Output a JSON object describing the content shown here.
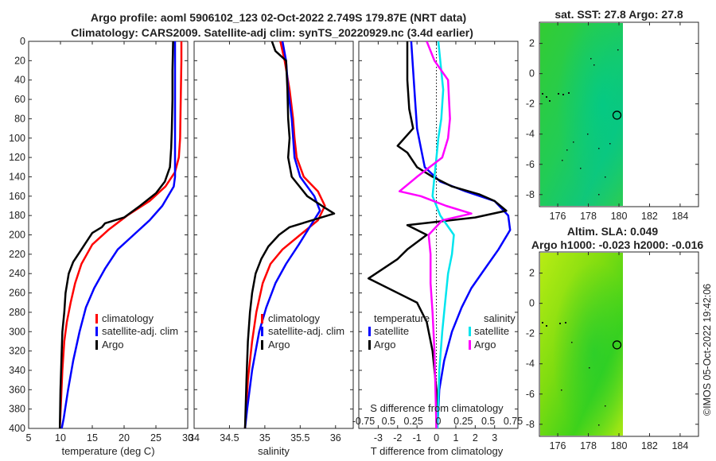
{
  "header": {
    "line1": "Argo profile: aoml 5906102_123 02-Oct-2022 2.749S 179.87E (NRT data)",
    "line2": "Climatology: CARS2009. Satellite-adj clim: synTS_20220929.nc (3.4d earlier)"
  },
  "watermark": "©IMOS 05-Oct-2022 19:42:06",
  "colors": {
    "climatology": "#ff0000",
    "satellite": "#0000ff",
    "argo": "#000000",
    "cyan": "#00e5ee",
    "magenta": "#ff00ff",
    "sst_base": "#22cc44",
    "sla_base": "#88e010"
  },
  "chart_data": [
    {
      "id": "temperature",
      "type": "line",
      "xlabel": "temperature (deg C)",
      "xlim": [
        5,
        30
      ],
      "xticks": [
        "5",
        "10",
        "15",
        "20",
        "25",
        "30"
      ],
      "ylim": [
        0,
        400
      ],
      "yticks": [
        "0",
        "20",
        "40",
        "60",
        "80",
        "100",
        "120",
        "140",
        "160",
        "180",
        "200",
        "220",
        "240",
        "260",
        "280",
        "300",
        "320",
        "340",
        "360",
        "380",
        "400"
      ],
      "legend": [
        "climatology",
        "satellite-adj. clim",
        "Argo"
      ],
      "series": [
        {
          "name": "climatology",
          "color": "#ff0000",
          "width": 2.5,
          "points": [
            [
              29.0,
              0
            ],
            [
              29.0,
              20
            ],
            [
              28.9,
              60
            ],
            [
              28.8,
              100
            ],
            [
              28.6,
              120
            ],
            [
              28.0,
              135
            ],
            [
              26.5,
              150
            ],
            [
              24.0,
              165
            ],
            [
              20.5,
              180
            ],
            [
              17.5,
              195
            ],
            [
              15.0,
              210
            ],
            [
              13.3,
              230
            ],
            [
              12.3,
              250
            ],
            [
              11.6,
              270
            ],
            [
              11.0,
              290
            ],
            [
              10.6,
              310
            ],
            [
              10.3,
              340
            ],
            [
              10.1,
              370
            ],
            [
              9.9,
              400
            ]
          ]
        },
        {
          "name": "satellite-adj. clim",
          "color": "#0000ff",
          "width": 2.5,
          "points": [
            [
              28.0,
              0
            ],
            [
              28.0,
              40
            ],
            [
              28.0,
              100
            ],
            [
              28.0,
              140
            ],
            [
              27.8,
              150
            ],
            [
              26.0,
              170
            ],
            [
              24.0,
              185
            ],
            [
              21.5,
              200
            ],
            [
              19.0,
              215
            ],
            [
              17.0,
              235
            ],
            [
              15.3,
              255
            ],
            [
              14.0,
              275
            ],
            [
              13.0,
              300
            ],
            [
              12.0,
              330
            ],
            [
              11.2,
              360
            ],
            [
              10.5,
              390
            ],
            [
              10.2,
              400
            ]
          ]
        },
        {
          "name": "Argo",
          "color": "#000000",
          "width": 2.5,
          "points": [
            [
              27.7,
              0
            ],
            [
              27.6,
              30
            ],
            [
              27.6,
              60
            ],
            [
              27.5,
              90
            ],
            [
              27.4,
              110
            ],
            [
              27.2,
              130
            ],
            [
              26.4,
              145
            ],
            [
              25.0,
              157
            ],
            [
              22.5,
              170
            ],
            [
              20.0,
              182
            ],
            [
              17.0,
              188
            ],
            [
              16.5,
              192
            ],
            [
              15.0,
              198
            ],
            [
              14.0,
              208
            ],
            [
              13.0,
              218
            ],
            [
              12.0,
              228
            ],
            [
              11.3,
              240
            ],
            [
              10.8,
              260
            ],
            [
              10.6,
              280
            ],
            [
              10.3,
              300
            ],
            [
              10.2,
              320
            ],
            [
              10.0,
              360
            ],
            [
              9.9,
              400
            ]
          ]
        }
      ]
    },
    {
      "id": "salinity",
      "type": "line",
      "xlabel": "salinity",
      "xlim": [
        34,
        36.25
      ],
      "xticks": [
        "34",
        "34.5",
        "35",
        "35.5",
        "36"
      ],
      "ylim": [
        0,
        400
      ],
      "legend": [
        "climatology",
        "satellite-adj. clim",
        "Argo"
      ],
      "series": [
        {
          "name": "climatology",
          "color": "#ff0000",
          "width": 2.5,
          "points": [
            [
              35.22,
              0
            ],
            [
              35.28,
              20
            ],
            [
              35.35,
              50
            ],
            [
              35.4,
              80
            ],
            [
              35.42,
              100
            ],
            [
              35.45,
              120
            ],
            [
              35.55,
              140
            ],
            [
              35.75,
              155
            ],
            [
              35.85,
              170
            ],
            [
              35.75,
              185
            ],
            [
              35.5,
              200
            ],
            [
              35.25,
              215
            ],
            [
              35.08,
              230
            ],
            [
              34.97,
              250
            ],
            [
              34.88,
              280
            ],
            [
              34.82,
              310
            ],
            [
              34.76,
              350
            ],
            [
              34.72,
              400
            ]
          ]
        },
        {
          "name": "satellite-adj. clim",
          "color": "#0000ff",
          "width": 2.5,
          "points": [
            [
              35.25,
              0
            ],
            [
              35.3,
              20
            ],
            [
              35.33,
              50
            ],
            [
              35.38,
              80
            ],
            [
              35.42,
              120
            ],
            [
              35.5,
              140
            ],
            [
              35.7,
              160
            ],
            [
              35.78,
              175
            ],
            [
              35.65,
              190
            ],
            [
              35.48,
              210
            ],
            [
              35.3,
              230
            ],
            [
              35.15,
              250
            ],
            [
              35.02,
              275
            ],
            [
              34.92,
              300
            ],
            [
              34.82,
              340
            ],
            [
              34.75,
              380
            ],
            [
              34.72,
              400
            ]
          ]
        },
        {
          "name": "Argo",
          "color": "#000000",
          "width": 2.5,
          "points": [
            [
              35.1,
              0
            ],
            [
              35.15,
              10
            ],
            [
              35.3,
              20
            ],
            [
              35.32,
              50
            ],
            [
              35.33,
              80
            ],
            [
              35.35,
              100
            ],
            [
              35.33,
              120
            ],
            [
              35.38,
              140
            ],
            [
              35.6,
              160
            ],
            [
              35.85,
              172
            ],
            [
              35.98,
              178
            ],
            [
              35.8,
              182
            ],
            [
              35.35,
              192
            ],
            [
              35.2,
              200
            ],
            [
              35.05,
              212
            ],
            [
              34.95,
              225
            ],
            [
              34.87,
              240
            ],
            [
              34.82,
              260
            ],
            [
              34.79,
              280
            ],
            [
              34.76,
              310
            ],
            [
              34.74,
              350
            ],
            [
              34.72,
              400
            ]
          ]
        }
      ]
    },
    {
      "id": "difference",
      "type": "line",
      "xlabel": "T difference from climatology",
      "xlim": [
        -4,
        4.2
      ],
      "xticks": [
        "-3",
        "-2",
        "-1",
        "0",
        "1",
        "2",
        "3"
      ],
      "top_axis_title": "S difference from climatology",
      "top_xticks": [
        "-0.75",
        "0.5",
        "0.25",
        "0",
        "0.25",
        "0.5",
        "0.75"
      ],
      "ylim": [
        0,
        400
      ],
      "legend_temperature_title": "temperature",
      "legend_salinity_title": "salinity",
      "legend_temperature": [
        "satellite",
        "Argo"
      ],
      "legend_salinity": [
        "satellite",
        "Argo"
      ],
      "series": [
        {
          "name": "temperature satellite",
          "color": "#0000ff",
          "width": 2.5,
          "points": [
            [
              -1.3,
              0
            ],
            [
              -1.2,
              30
            ],
            [
              -1.1,
              60
            ],
            [
              -1.0,
              90
            ],
            [
              -0.8,
              110
            ],
            [
              -0.6,
              130
            ],
            [
              0.2,
              145
            ],
            [
              1.5,
              155
            ],
            [
              3.0,
              165
            ],
            [
              3.7,
              180
            ],
            [
              3.8,
              195
            ],
            [
              3.2,
              215
            ],
            [
              2.5,
              235
            ],
            [
              1.8,
              255
            ],
            [
              1.3,
              275
            ],
            [
              0.8,
              300
            ],
            [
              0.4,
              330
            ],
            [
              0.15,
              360
            ],
            [
              0.05,
              400
            ]
          ]
        },
        {
          "name": "temperature Argo",
          "color": "#000000",
          "width": 2.5,
          "points": [
            [
              -1.5,
              0
            ],
            [
              -1.5,
              40
            ],
            [
              -1.4,
              70
            ],
            [
              -1.2,
              90
            ],
            [
              -2.0,
              108
            ],
            [
              -1.5,
              115
            ],
            [
              -1.0,
              130
            ],
            [
              -0.2,
              140
            ],
            [
              0.8,
              150
            ],
            [
              2.2,
              158
            ],
            [
              3.0,
              165
            ],
            [
              3.6,
              175
            ],
            [
              2.0,
              182
            ],
            [
              -1.5,
              190
            ],
            [
              -0.5,
              200
            ],
            [
              -1.5,
              215
            ],
            [
              -2.0,
              225
            ],
            [
              -3.5,
              245
            ],
            [
              -1.0,
              270
            ],
            [
              -0.5,
              290
            ],
            [
              -0.2,
              320
            ],
            [
              0.0,
              360
            ],
            [
              0.0,
              400
            ]
          ]
        },
        {
          "name": "salinity satellite",
          "color": "#00e5ee",
          "width": 2.5,
          "points": [
            [
              0.1,
              0
            ],
            [
              0.2,
              20
            ],
            [
              0.35,
              50
            ],
            [
              0.25,
              80
            ],
            [
              0.1,
              100
            ],
            [
              0.0,
              120
            ],
            [
              -0.1,
              140
            ],
            [
              -0.2,
              160
            ],
            [
              0.2,
              180
            ],
            [
              0.9,
              200
            ],
            [
              0.8,
              220
            ],
            [
              0.6,
              240
            ],
            [
              0.45,
              270
            ],
            [
              0.3,
              300
            ],
            [
              0.15,
              340
            ],
            [
              0.05,
              400
            ]
          ]
        },
        {
          "name": "salinity Argo",
          "color": "#ff00ff",
          "width": 2.5,
          "points": [
            [
              -0.5,
              0
            ],
            [
              -0.1,
              20
            ],
            [
              0.6,
              40
            ],
            [
              0.7,
              80
            ],
            [
              0.6,
              100
            ],
            [
              0.3,
              120
            ],
            [
              -1.0,
              140
            ],
            [
              -1.9,
              155
            ],
            [
              -0.8,
              160
            ],
            [
              0.5,
              170
            ],
            [
              1.8,
              178
            ],
            [
              0.3,
              185
            ],
            [
              -0.4,
              200
            ],
            [
              -0.3,
              220
            ],
            [
              -0.3,
              250
            ],
            [
              -0.2,
              280
            ],
            [
              -0.1,
              320
            ],
            [
              0.0,
              400
            ]
          ]
        }
      ]
    },
    {
      "id": "sst_map",
      "type": "heatmap",
      "title": "sat. SST: 27.8 Argo: 27.8",
      "xlim": [
        174.8,
        185.2
      ],
      "xticks": [
        "176",
        "178",
        "180",
        "182",
        "184"
      ],
      "ylim": [
        -8.8,
        3.4
      ],
      "yticks": [
        "2",
        "0",
        "-2",
        "-4",
        "-6",
        "-8"
      ],
      "data_x_max": 180,
      "argo_position": {
        "lon": 179.87,
        "lat": -2.749
      }
    },
    {
      "id": "sla_map",
      "type": "heatmap",
      "title": "Altim. SLA: 0.049",
      "subtitle": "Argo h1000: -0.023 h2000: -0.016",
      "xlim": [
        174.8,
        185.2
      ],
      "xticks": [
        "176",
        "178",
        "180",
        "182",
        "184"
      ],
      "ylim": [
        -8.8,
        3.4
      ],
      "yticks": [
        "2",
        "0",
        "-2",
        "-4",
        "-6",
        "-8"
      ],
      "data_x_max": 180,
      "argo_position": {
        "lon": 179.87,
        "lat": -2.749
      }
    }
  ]
}
